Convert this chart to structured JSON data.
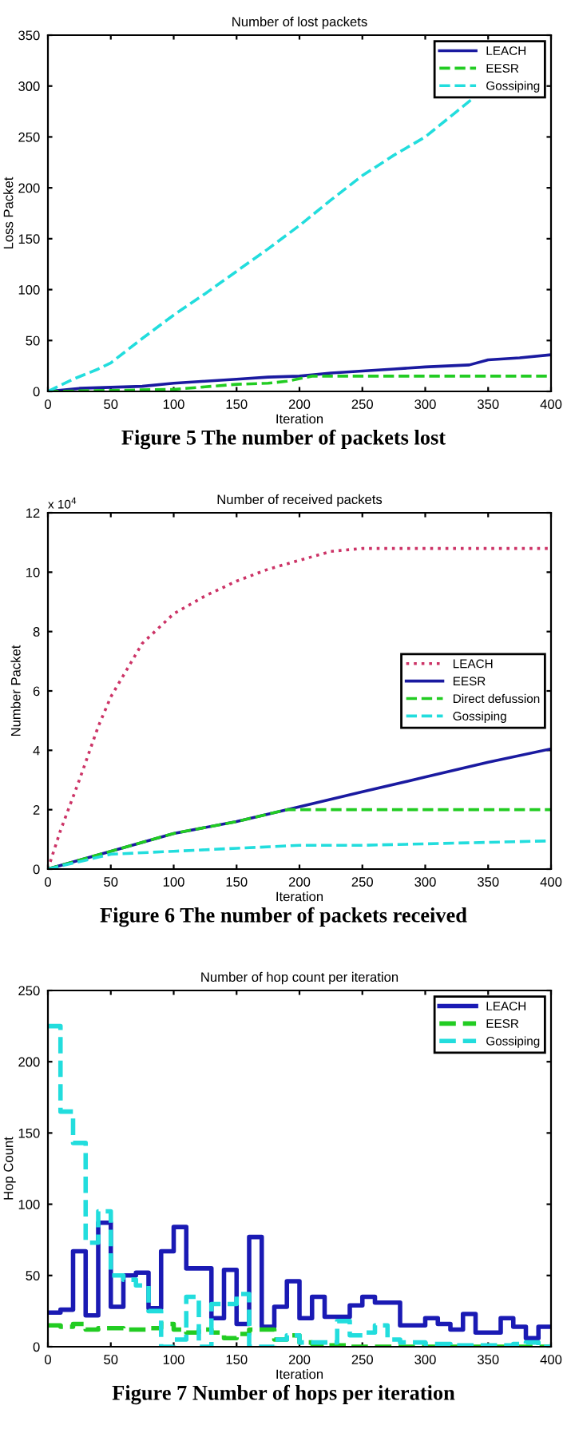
{
  "chart_data": [
    {
      "type": "line",
      "title": "Number of lost packets",
      "xlabel": "Iteration",
      "ylabel": "Loss Packet",
      "xlim": [
        0,
        400
      ],
      "ylim": [
        0,
        350
      ],
      "xticks": [
        0,
        50,
        100,
        150,
        200,
        250,
        300,
        350,
        400
      ],
      "yticks": [
        0,
        50,
        100,
        150,
        200,
        250,
        300,
        350
      ],
      "legend": "top right",
      "annotations": [
        "Figure 5 The number of packets lost"
      ],
      "series": [
        {
          "name": "LEACH",
          "color": "#1a1aa0",
          "line_style": "solid",
          "x": [
            0,
            25,
            50,
            75,
            100,
            125,
            150,
            175,
            200,
            225,
            250,
            275,
            300,
            335,
            350,
            375,
            400
          ],
          "values": [
            0,
            3,
            4,
            5,
            8,
            10,
            12,
            14,
            15,
            18,
            20,
            22,
            24,
            26,
            31,
            33,
            36
          ]
        },
        {
          "name": "EESR",
          "color": "#22cc22",
          "line_style": "dashed",
          "x": [
            0,
            50,
            100,
            150,
            175,
            190,
            210,
            250,
            300,
            350,
            400
          ],
          "values": [
            0,
            1,
            2,
            7,
            8,
            10,
            15,
            15,
            15,
            15,
            15
          ]
        },
        {
          "name": "Gossiping",
          "color": "#22dddd",
          "line_style": "dashed",
          "x": [
            0,
            10,
            20,
            40,
            50,
            75,
            100,
            125,
            150,
            175,
            200,
            225,
            250,
            275,
            300,
            325,
            340
          ],
          "values": [
            0,
            6,
            12,
            22,
            28,
            52,
            75,
            96,
            118,
            140,
            163,
            188,
            212,
            232,
            250,
            275,
            290
          ]
        }
      ]
    },
    {
      "type": "line",
      "title": "Number of received packets",
      "xlabel": "Iteration",
      "ylabel": "Number Packet",
      "xlim": [
        0,
        400
      ],
      "ylim": [
        0,
        12
      ],
      "xticks": [
        0,
        50,
        100,
        150,
        200,
        250,
        300,
        350,
        400
      ],
      "yticks": [
        0,
        2,
        4,
        6,
        8,
        10,
        12
      ],
      "legend": "right",
      "annotations": [
        "x 10$^{4}$",
        "Figure 6 The number of packets received"
      ],
      "series": [
        {
          "name": "LEACH",
          "color": "#cc3366",
          "line_style": "dotted",
          "x": [
            0,
            10,
            25,
            40,
            50,
            75,
            100,
            125,
            150,
            175,
            200,
            225,
            250,
            300,
            350,
            400
          ],
          "values": [
            0,
            1.3,
            3,
            4.8,
            5.8,
            7.6,
            8.6,
            9.2,
            9.7,
            10.1,
            10.4,
            10.7,
            10.8,
            10.8,
            10.8,
            10.8
          ]
        },
        {
          "name": "EESR",
          "color": "#1a1aa0",
          "line_style": "solid",
          "x": [
            0,
            50,
            100,
            150,
            200,
            250,
            300,
            350,
            400
          ],
          "values": [
            0,
            0.6,
            1.2,
            1.6,
            2.1,
            2.6,
            3.1,
            3.6,
            4.05
          ]
        },
        {
          "name": "Direct defussion",
          "color": "#22cc22",
          "line_style": "dashed",
          "x": [
            0,
            50,
            100,
            150,
            190,
            200,
            250,
            300,
            350,
            400
          ],
          "values": [
            0,
            0.6,
            1.2,
            1.6,
            2.0,
            2.0,
            2.0,
            2.0,
            2.0,
            2.0
          ]
        },
        {
          "name": "Gossiping",
          "color": "#22dddd",
          "line_style": "dashed",
          "x": [
            0,
            50,
            100,
            150,
            200,
            250,
            300,
            350,
            400
          ],
          "values": [
            0,
            0.5,
            0.6,
            0.7,
            0.8,
            0.8,
            0.85,
            0.9,
            0.95
          ]
        }
      ]
    },
    {
      "type": "step",
      "title": "Number of hop count per iteration",
      "xlabel": "Iteration",
      "ylabel": "Hop Count",
      "xlim": [
        0,
        400
      ],
      "ylim": [
        0,
        250
      ],
      "xticks": [
        0,
        50,
        100,
        150,
        200,
        250,
        300,
        350,
        400
      ],
      "yticks": [
        0,
        50,
        100,
        150,
        200,
        250
      ],
      "legend": "top right",
      "annotations": [
        "Figure 7 Number of hops per iteration"
      ],
      "x": [
        0,
        10,
        20,
        30,
        40,
        50,
        60,
        70,
        80,
        90,
        100,
        110,
        120,
        130,
        140,
        150,
        160,
        170,
        180,
        190,
        200,
        210,
        220,
        230,
        240,
        250,
        260,
        270,
        280,
        290,
        300,
        310,
        320,
        330,
        340,
        350,
        360,
        370,
        380,
        390,
        400
      ],
      "series": [
        {
          "name": "LEACH",
          "color": "#1a1ab4",
          "line_style": "solid",
          "values": [
            24,
            26,
            67,
            22,
            87,
            28,
            50,
            52,
            27,
            67,
            84,
            55,
            55,
            20,
            54,
            16,
            77,
            14,
            28,
            46,
            20,
            35,
            21,
            21,
            29,
            35,
            31,
            31,
            15,
            15,
            20,
            16,
            12,
            23,
            10,
            10,
            20,
            14,
            6,
            14,
            14
          ]
        },
        {
          "name": "EESR",
          "color": "#22cc22",
          "line_style": "dashed",
          "values": [
            15,
            14,
            16,
            12,
            13,
            13,
            12,
            12,
            13,
            16,
            12,
            10,
            12,
            10,
            6,
            9,
            12,
            12,
            5,
            8,
            3,
            2,
            1,
            1,
            0,
            0,
            0,
            0,
            0,
            0,
            0,
            0,
            0,
            0,
            0,
            0,
            0,
            0,
            0,
            0,
            0
          ]
        },
        {
          "name": "Gossiping",
          "color": "#22dddd",
          "line_style": "dashed",
          "values": [
            225,
            165,
            143,
            73,
            95,
            50,
            47,
            43,
            25,
            0,
            5,
            35,
            0,
            30,
            30,
            37,
            0,
            0,
            5,
            8,
            3,
            3,
            3,
            18,
            8,
            10,
            15,
            5,
            3,
            3,
            2,
            2,
            1,
            1,
            1,
            1,
            1,
            2,
            3,
            0,
            0
          ]
        }
      ]
    }
  ]
}
